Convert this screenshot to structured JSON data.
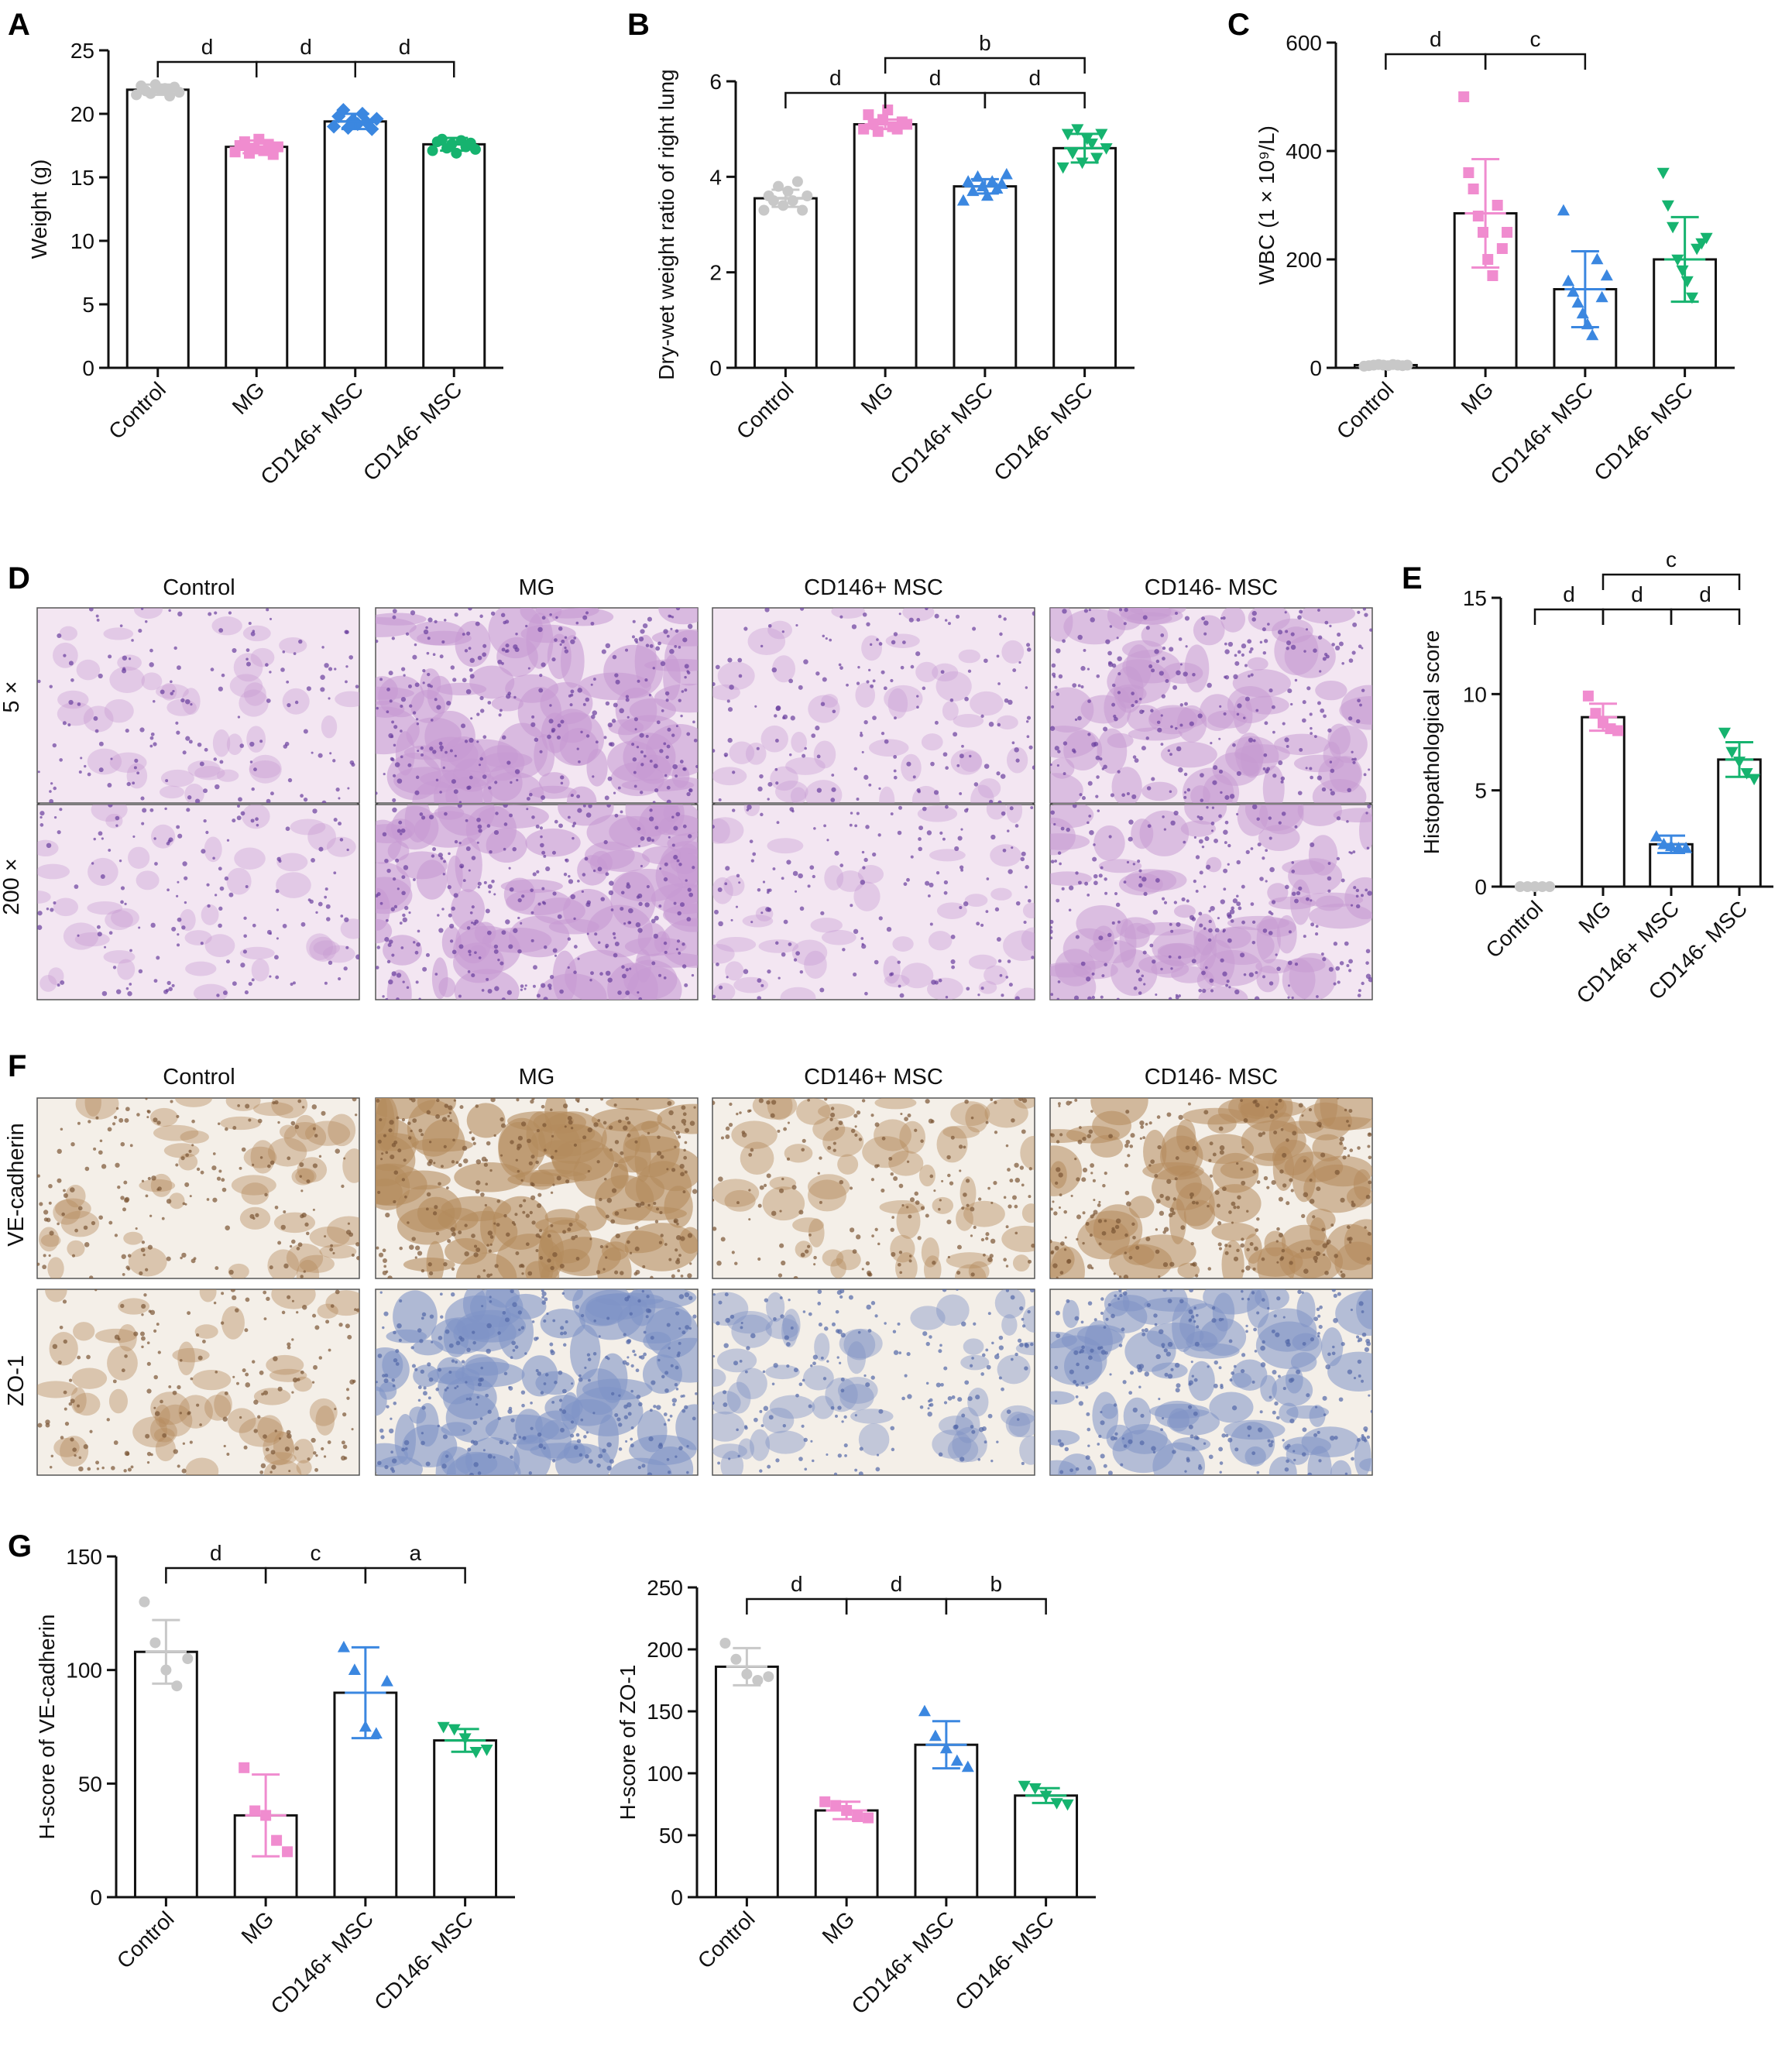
{
  "groups": [
    "Control",
    "MG",
    "CD146+ MSC",
    "CD146- MSC"
  ],
  "group_colors": [
    "#c8c8c8",
    "#f08ccf",
    "#3b87e0",
    "#16b36f"
  ],
  "panel_letters": {
    "A": "A",
    "B": "B",
    "C": "C",
    "D": "D",
    "E": "E",
    "F": "F",
    "G": "G"
  },
  "histology": {
    "columns": [
      "Control",
      "MG",
      "CD146+ MSC",
      "CD146- MSC"
    ],
    "rows_D": [
      "5 ×",
      "200 ×"
    ],
    "rows_F": [
      "VE-cadherin",
      "ZO-1"
    ],
    "he_colors": {
      "bg": "#f3e6f2",
      "tissue": "#c79ad2",
      "nuclei": "#6a3f9e"
    },
    "ihc_colors": {
      "bg": "#f4efe8",
      "brown": "#b48a5c",
      "blue": "#7f93c6"
    }
  },
  "chart_data": [
    {
      "id": "A",
      "type": "bar",
      "ylabel": "Weight (g)",
      "ylim": [
        0,
        25
      ],
      "yticks": [
        0,
        5,
        10,
        15,
        20,
        25
      ],
      "categories": [
        "Control",
        "MG",
        "CD146+ MSC",
        "CD146- MSC"
      ],
      "values": [
        21.9,
        17.4,
        19.4,
        17.6
      ],
      "sd": [
        0.4,
        0.5,
        0.6,
        0.5
      ],
      "markers": [
        "circle",
        "square",
        "diamond",
        "circle"
      ],
      "points": [
        [
          21.5,
          22.2,
          21.8,
          21.6,
          22.3,
          21.9,
          22.0,
          21.4,
          22.1,
          21.7
        ],
        [
          17.0,
          17.5,
          17.8,
          16.9,
          17.3,
          18.0,
          17.1,
          17.6,
          16.8,
          17.4
        ],
        [
          19.0,
          19.8,
          20.3,
          18.9,
          19.5,
          19.2,
          20.0,
          19.3,
          18.8,
          19.6
        ],
        [
          17.1,
          17.8,
          18.0,
          17.3,
          17.6,
          16.9,
          17.9,
          17.4,
          17.7,
          17.2
        ]
      ],
      "brackets": [
        {
          "from": 0,
          "to": 1,
          "level": 0,
          "label": "d"
        },
        {
          "from": 1,
          "to": 2,
          "level": 0,
          "label": "d"
        },
        {
          "from": 2,
          "to": 3,
          "level": 0,
          "label": "d"
        }
      ]
    },
    {
      "id": "B",
      "type": "bar",
      "ylabel": "Dry-wet weight ratio of right lung",
      "ylim": [
        0,
        6
      ],
      "yticks": [
        0,
        2,
        4,
        6
      ],
      "categories": [
        "Control",
        "MG",
        "CD146+ MSC",
        "CD146- MSC"
      ],
      "values": [
        3.55,
        5.1,
        3.8,
        4.6
      ],
      "sd": [
        0.18,
        0.1,
        0.15,
        0.3
      ],
      "markers": [
        "circle",
        "square",
        "triangle",
        "triangle-down"
      ],
      "points": [
        [
          3.3,
          3.6,
          3.5,
          3.8,
          3.4,
          3.7,
          3.5,
          3.9,
          3.3,
          3.6
        ],
        [
          5.0,
          5.3,
          5.1,
          4.95,
          5.2,
          5.4,
          5.05,
          5.0,
          5.15,
          5.1
        ],
        [
          3.5,
          3.9,
          3.7,
          4.0,
          3.8,
          3.6,
          3.9,
          3.75,
          3.85,
          4.05
        ],
        [
          4.2,
          4.9,
          4.5,
          5.0,
          4.3,
          4.8,
          4.7,
          4.4,
          4.9,
          4.6
        ]
      ],
      "brackets": [
        {
          "from": 0,
          "to": 1,
          "level": 0,
          "label": "d"
        },
        {
          "from": 1,
          "to": 2,
          "level": 0,
          "label": "d"
        },
        {
          "from": 2,
          "to": 3,
          "level": 0,
          "label": "d"
        },
        {
          "from": 1,
          "to": 3,
          "level": 1,
          "label": "b"
        }
      ]
    },
    {
      "id": "C",
      "type": "bar",
      "ylabel": "WBC (1 × 10⁹/L)",
      "ylim": [
        0,
        600
      ],
      "yticks": [
        0,
        200,
        400,
        600
      ],
      "categories": [
        "Control",
        "MG",
        "CD146+ MSC",
        "CD146- MSC"
      ],
      "values": [
        5,
        285,
        145,
        200
      ],
      "sd": [
        2,
        100,
        70,
        78
      ],
      "markers": [
        "circle",
        "square",
        "triangle",
        "triangle-down"
      ],
      "points": [
        [
          3,
          4,
          5,
          6,
          5,
          4,
          6,
          5,
          4,
          5
        ],
        [
          500,
          360,
          330,
          280,
          250,
          200,
          170,
          300,
          220,
          250
        ],
        [
          290,
          160,
          140,
          120,
          100,
          80,
          60,
          200,
          130,
          170
        ],
        [
          360,
          300,
          260,
          200,
          180,
          160,
          130,
          220,
          230,
          240
        ]
      ],
      "brackets": [
        {
          "from": 0,
          "to": 1,
          "level": 0,
          "label": "d"
        },
        {
          "from": 1,
          "to": 2,
          "level": 0,
          "label": "c"
        }
      ]
    },
    {
      "id": "E",
      "type": "bar",
      "ylabel": "Histopathological score",
      "ylim": [
        0,
        15
      ],
      "yticks": [
        0,
        5,
        10,
        15
      ],
      "categories": [
        "Control",
        "MG",
        "CD146+ MSC",
        "CD146- MSC"
      ],
      "values": [
        0,
        8.8,
        2.2,
        6.6
      ],
      "sd": [
        0,
        0.7,
        0.45,
        0.9
      ],
      "markers": [
        "circle",
        "square",
        "triangle",
        "triangle-down"
      ],
      "points": [
        [
          0,
          0,
          0,
          0,
          0
        ],
        [
          9.9,
          9.0,
          8.5,
          8.2,
          8.1
        ],
        [
          2.6,
          2.2,
          2.1,
          2.0,
          2.0
        ],
        [
          8.0,
          7.0,
          6.5,
          5.9,
          5.6
        ]
      ],
      "brackets": [
        {
          "from": 0,
          "to": 1,
          "level": 0,
          "label": "d"
        },
        {
          "from": 1,
          "to": 2,
          "level": 0,
          "label": "d"
        },
        {
          "from": 2,
          "to": 3,
          "level": 0,
          "label": "d"
        },
        {
          "from": 1,
          "to": 3,
          "level": 1,
          "label": "c"
        }
      ]
    },
    {
      "id": "G1",
      "type": "bar",
      "ylabel": "H-score of VE-cadherin",
      "ylim": [
        0,
        150
      ],
      "yticks": [
        0,
        50,
        100,
        150
      ],
      "categories": [
        "Control",
        "MG",
        "CD146+ MSC",
        "CD146- MSC"
      ],
      "values": [
        108,
        36,
        90,
        69
      ],
      "sd": [
        14,
        18,
        20,
        5
      ],
      "markers": [
        "circle",
        "square",
        "triangle",
        "triangle-down"
      ],
      "points": [
        [
          130,
          112,
          100,
          93,
          105
        ],
        [
          57,
          38,
          36,
          25,
          20
        ],
        [
          110,
          100,
          75,
          72,
          95
        ],
        [
          75,
          74,
          70,
          64,
          65
        ]
      ],
      "brackets": [
        {
          "from": 0,
          "to": 1,
          "level": 0,
          "label": "d"
        },
        {
          "from": 1,
          "to": 2,
          "level": 0,
          "label": "c"
        },
        {
          "from": 2,
          "to": 3,
          "level": 0,
          "label": "a"
        }
      ]
    },
    {
      "id": "G2",
      "type": "bar",
      "ylabel": "H-score of ZO-1",
      "ylim": [
        0,
        250
      ],
      "yticks": [
        0,
        50,
        100,
        150,
        200,
        250
      ],
      "categories": [
        "Control",
        "MG",
        "CD146+ MSC",
        "CD146- MSC"
      ],
      "values": [
        186,
        70,
        123,
        82
      ],
      "sd": [
        15,
        7,
        19,
        6
      ],
      "markers": [
        "circle",
        "square",
        "triangle",
        "triangle-down"
      ],
      "points": [
        [
          205,
          192,
          180,
          175,
          178
        ],
        [
          77,
          74,
          70,
          65,
          64
        ],
        [
          150,
          130,
          120,
          110,
          105
        ],
        [
          90,
          88,
          82,
          76,
          75
        ]
      ],
      "brackets": [
        {
          "from": 0,
          "to": 1,
          "level": 0,
          "label": "d"
        },
        {
          "from": 1,
          "to": 2,
          "level": 0,
          "label": "d"
        },
        {
          "from": 2,
          "to": 3,
          "level": 0,
          "label": "b"
        }
      ]
    }
  ]
}
